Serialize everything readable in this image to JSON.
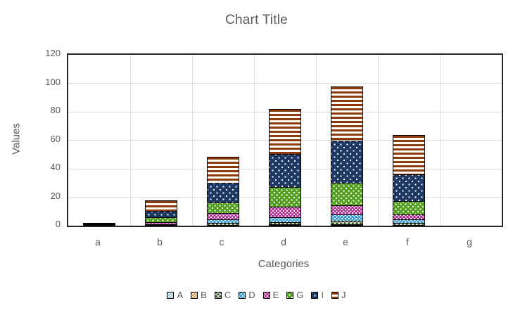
{
  "chart_data": {
    "type": "bar",
    "stacked": true,
    "title": "Chart Title",
    "xlabel": "Categories",
    "ylabel": "Values",
    "categories": [
      "a",
      "b",
      "c",
      "d",
      "e",
      "f",
      "g"
    ],
    "y_ticks": [
      0,
      20,
      40,
      60,
      80,
      100,
      120
    ],
    "ylim": [
      0,
      120
    ],
    "grid": true,
    "legend_position": "bottom",
    "series": [
      {
        "name": "A",
        "values": [
          1,
          0,
          0,
          0,
          0,
          0,
          0
        ],
        "color": "#9dc3e6",
        "pattern": "dots",
        "dot_size": 4
      },
      {
        "name": "B",
        "values": [
          1,
          0,
          0,
          1,
          1,
          0,
          0
        ],
        "color": "#ed7d31",
        "pattern": "dots",
        "dot_size": 4
      },
      {
        "name": "C",
        "values": [
          1,
          1,
          2,
          2,
          3,
          2,
          0
        ],
        "color": "#375623",
        "pattern": "crosshatch",
        "dot_size": 4
      },
      {
        "name": "D",
        "values": [
          0,
          0,
          3,
          4,
          5,
          3,
          0
        ],
        "color": "#2e9bd5",
        "pattern": "dots",
        "dot_size": 5
      },
      {
        "name": "E",
        "values": [
          0,
          2,
          5,
          8,
          7,
          4,
          0
        ],
        "color": "#b02a94",
        "pattern": "dots",
        "dot_size": 5
      },
      {
        "name": "G",
        "values": [
          0,
          4,
          8,
          14,
          16,
          10,
          0
        ],
        "color": "#54a021",
        "pattern": "dots",
        "dot_size": 7
      },
      {
        "name": "I",
        "values": [
          0,
          5,
          14,
          24,
          30,
          19,
          0
        ],
        "color": "#1f3864",
        "pattern": "dots",
        "dot_size": 9
      },
      {
        "name": "J",
        "values": [
          0,
          8,
          19,
          32,
          39,
          28,
          0
        ],
        "color": "#8e3b0b",
        "pattern": "hstripes",
        "dot_size": 3
      }
    ],
    "totals": [
      3,
      20,
      51,
      85,
      101,
      66,
      0
    ]
  },
  "style_colors": {
    "plot_border": "#262626",
    "gridline": "#d9d9d9",
    "text": "#595959",
    "segment_outline": "#000000"
  }
}
